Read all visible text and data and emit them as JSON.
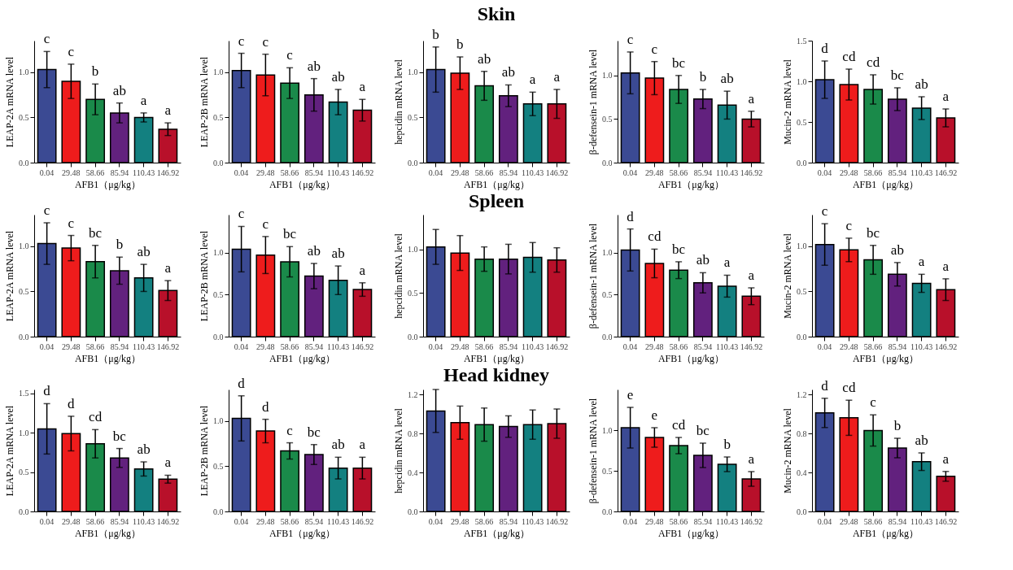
{
  "chart_data": [
    {
      "type": "bar",
      "ylabel": "LEAP-2A mRNA level",
      "xlabel": "AFB1（μg/kg）",
      "categories": [
        "0.04",
        "29.48",
        "58.66",
        "85.94",
        "110.43",
        "146.92"
      ],
      "colors": [
        "#3b4a93",
        "#ee1c1c",
        "#1a8a4a",
        "#62217e",
        "#138080",
        "#b8102a"
      ],
      "values": [
        1.03,
        0.9,
        0.7,
        0.55,
        0.5,
        0.37
      ],
      "errors": [
        0.2,
        0.19,
        0.17,
        0.11,
        0.05,
        0.07
      ],
      "ylim": [
        0,
        1.35
      ],
      "yticks": [
        {
          "value": 0,
          "label": "0.0"
        },
        {
          "value": 0.5,
          "label": "0.5"
        },
        {
          "value": 1,
          "label": "1.0"
        }
      ],
      "grid": false,
      "legend": false,
      "annotations": [
        {
          "text": "c",
          "x": "0.04",
          "y": 1.23
        },
        {
          "text": "c",
          "x": "29.48",
          "y": 1.09
        },
        {
          "text": "b",
          "x": "58.66",
          "y": 0.87
        },
        {
          "text": "ab",
          "x": "85.94",
          "y": 0.66
        },
        {
          "text": "a",
          "x": "110.43",
          "y": 0.55
        },
        {
          "text": "a",
          "x": "146.92",
          "y": 0.44
        }
      ]
    },
    {
      "type": "bar",
      "ylabel": "LEAP-2B mRNA level",
      "xlabel": "AFB1（μg/kg）",
      "categories": [
        "0.04",
        "29.48",
        "58.66",
        "85.94",
        "110.43",
        "146.92"
      ],
      "colors": [
        "#3b4a93",
        "#ee1c1c",
        "#1a8a4a",
        "#62217e",
        "#138080",
        "#b8102a"
      ],
      "values": [
        1.02,
        0.97,
        0.88,
        0.75,
        0.67,
        0.58
      ],
      "errors": [
        0.19,
        0.23,
        0.17,
        0.18,
        0.14,
        0.12
      ],
      "ylim": [
        0,
        1.35
      ],
      "yticks": [
        {
          "value": 0,
          "label": "0.0"
        },
        {
          "value": 0.5,
          "label": "0.5"
        },
        {
          "value": 1,
          "label": "1.0"
        }
      ],
      "grid": false,
      "legend": false,
      "annotations": [
        {
          "text": "c",
          "x": "0.04",
          "y": 1.21
        },
        {
          "text": "c",
          "x": "29.48",
          "y": 1.2
        },
        {
          "text": "c",
          "x": "58.66",
          "y": 1.05
        },
        {
          "text": "ab",
          "x": "85.94",
          "y": 0.93
        },
        {
          "text": "ab",
          "x": "110.43",
          "y": 0.81
        },
        {
          "text": "a",
          "x": "146.92",
          "y": 0.7
        }
      ]
    },
    {
      "type": "bar",
      "title": "Skin",
      "ylabel": "hepcidin mRNA level",
      "xlabel": "AFB1（μg/kg）",
      "categories": [
        "0.04",
        "29.48",
        "58.66",
        "85.94",
        "110.43",
        "146.92"
      ],
      "colors": [
        "#3b4a93",
        "#ee1c1c",
        "#1a8a4a",
        "#62217e",
        "#138080",
        "#b8102a"
      ],
      "values": [
        1.03,
        0.99,
        0.85,
        0.74,
        0.65,
        0.65
      ],
      "errors": [
        0.25,
        0.18,
        0.16,
        0.12,
        0.13,
        0.16
      ],
      "ylim": [
        0,
        1.35
      ],
      "yticks": [
        {
          "value": 0,
          "label": "0.0"
        },
        {
          "value": 0.5,
          "label": "0.5"
        },
        {
          "value": 1,
          "label": "1.0"
        }
      ],
      "grid": false,
      "legend": false,
      "annotations": [
        {
          "text": "b",
          "x": "0.04",
          "y": 1.28
        },
        {
          "text": "b",
          "x": "29.48",
          "y": 1.17
        },
        {
          "text": "ab",
          "x": "58.66",
          "y": 1.01
        },
        {
          "text": "ab",
          "x": "85.94",
          "y": 0.86
        },
        {
          "text": "a",
          "x": "110.43",
          "y": 0.78
        },
        {
          "text": "a",
          "x": "146.92",
          "y": 0.81
        }
      ]
    },
    {
      "type": "bar",
      "ylabel": "β-defensein-1 mRNA level",
      "xlabel": "AFB1（μg/kg）",
      "categories": [
        "0.04",
        "29.48",
        "58.66",
        "85.94",
        "110.43",
        "146.92"
      ],
      "colors": [
        "#3b4a93",
        "#ee1c1c",
        "#1a8a4a",
        "#62217e",
        "#138080",
        "#b8102a"
      ],
      "values": [
        1.03,
        0.97,
        0.84,
        0.73,
        0.66,
        0.5
      ],
      "errors": [
        0.24,
        0.19,
        0.16,
        0.11,
        0.16,
        0.09
      ],
      "ylim": [
        0,
        1.4
      ],
      "yticks": [
        {
          "value": 0,
          "label": "0.0"
        },
        {
          "value": 0.5,
          "label": "0.5"
        },
        {
          "value": 1,
          "label": "1.0"
        }
      ],
      "grid": false,
      "legend": false,
      "annotations": [
        {
          "text": "c",
          "x": "0.04",
          "y": 1.27
        },
        {
          "text": "c",
          "x": "29.48",
          "y": 1.16
        },
        {
          "text": "bc",
          "x": "58.66",
          "y": 1.0
        },
        {
          "text": "b",
          "x": "85.94",
          "y": 0.84
        },
        {
          "text": "ab",
          "x": "110.43",
          "y": 0.82
        },
        {
          "text": "a",
          "x": "146.92",
          "y": 0.59
        }
      ]
    },
    {
      "type": "bar",
      "ylabel": "Mucin-2 mRNA level",
      "xlabel": "AFB1（μg/kg）",
      "categories": [
        "0.04",
        "29.48",
        "58.66",
        "85.94",
        "110.43",
        "146.92"
      ],
      "colors": [
        "#3b4a93",
        "#ee1c1c",
        "#1a8a4a",
        "#62217e",
        "#138080",
        "#b8102a"
      ],
      "values": [
        1.02,
        0.96,
        0.9,
        0.78,
        0.67,
        0.55
      ],
      "errors": [
        0.23,
        0.19,
        0.18,
        0.14,
        0.14,
        0.11
      ],
      "ylim": [
        0,
        1.5
      ],
      "yticks": [
        {
          "value": 0,
          "label": "0.0"
        },
        {
          "value": 0.5,
          "label": "0.5"
        },
        {
          "value": 1,
          "label": "1.0"
        },
        {
          "value": 1.5,
          "label": "1.5"
        }
      ],
      "grid": false,
      "legend": false,
      "annotations": [
        {
          "text": "d",
          "x": "0.04",
          "y": 1.25
        },
        {
          "text": "cd",
          "x": "29.48",
          "y": 1.15
        },
        {
          "text": "cd",
          "x": "58.66",
          "y": 1.08
        },
        {
          "text": "bc",
          "x": "85.94",
          "y": 0.92
        },
        {
          "text": "ab",
          "x": "110.43",
          "y": 0.81
        },
        {
          "text": "a",
          "x": "146.92",
          "y": 0.66
        }
      ]
    },
    {
      "type": "bar",
      "ylabel": "LEAP-2A mRNA level",
      "xlabel": "AFB1（μg/kg）",
      "categories": [
        "0.04",
        "29.48",
        "58.66",
        "85.94",
        "110.43",
        "146.92"
      ],
      "colors": [
        "#3b4a93",
        "#ee1c1c",
        "#1a8a4a",
        "#62217e",
        "#138080",
        "#b8102a"
      ],
      "values": [
        1.03,
        0.98,
        0.83,
        0.73,
        0.65,
        0.51
      ],
      "errors": [
        0.23,
        0.14,
        0.18,
        0.15,
        0.15,
        0.11
      ],
      "ylim": [
        0,
        1.35
      ],
      "yticks": [
        {
          "value": 0,
          "label": "0.0"
        },
        {
          "value": 0.5,
          "label": "0.5"
        },
        {
          "value": 1,
          "label": "1.0"
        }
      ],
      "grid": false,
      "legend": false,
      "annotations": [
        {
          "text": "c",
          "x": "0.04",
          "y": 1.26
        },
        {
          "text": "c",
          "x": "29.48",
          "y": 1.12
        },
        {
          "text": "bc",
          "x": "58.66",
          "y": 1.01
        },
        {
          "text": "b",
          "x": "85.94",
          "y": 0.88
        },
        {
          "text": "ab",
          "x": "110.43",
          "y": 0.8
        },
        {
          "text": "a",
          "x": "146.92",
          "y": 0.62
        }
      ]
    },
    {
      "type": "bar",
      "ylabel": "LEAP-2B mRNA level",
      "xlabel": "AFB1（μg/kg）",
      "categories": [
        "0.04",
        "29.48",
        "58.66",
        "85.94",
        "110.43",
        "146.92"
      ],
      "colors": [
        "#3b4a93",
        "#ee1c1c",
        "#1a8a4a",
        "#62217e",
        "#138080",
        "#b8102a"
      ],
      "values": [
        1.04,
        0.97,
        0.89,
        0.72,
        0.67,
        0.56
      ],
      "errors": [
        0.27,
        0.22,
        0.18,
        0.15,
        0.17,
        0.08
      ],
      "ylim": [
        0,
        1.45
      ],
      "yticks": [
        {
          "value": 0,
          "label": "0.0"
        },
        {
          "value": 0.5,
          "label": "0.5"
        },
        {
          "value": 1,
          "label": "1.0"
        }
      ],
      "grid": false,
      "legend": false,
      "annotations": [
        {
          "text": "c",
          "x": "0.04",
          "y": 1.31
        },
        {
          "text": "c",
          "x": "29.48",
          "y": 1.19
        },
        {
          "text": "bc",
          "x": "58.66",
          "y": 1.07
        },
        {
          "text": "ab",
          "x": "85.94",
          "y": 0.87
        },
        {
          "text": "ab",
          "x": "110.43",
          "y": 0.84
        },
        {
          "text": "a",
          "x": "146.92",
          "y": 0.64
        }
      ]
    },
    {
      "type": "bar",
      "title": "Spleen",
      "ylabel": "hepcidin mRNA level",
      "xlabel": "AFB1（μg/kg）",
      "categories": [
        "0.04",
        "29.48",
        "58.66",
        "85.94",
        "110.43",
        "146.92"
      ],
      "colors": [
        "#3b4a93",
        "#ee1c1c",
        "#1a8a4a",
        "#62217e",
        "#138080",
        "#b8102a"
      ],
      "values": [
        1.03,
        0.96,
        0.89,
        0.89,
        0.91,
        0.88
      ],
      "errors": [
        0.2,
        0.2,
        0.14,
        0.17,
        0.17,
        0.14
      ],
      "ylim": [
        0,
        1.4
      ],
      "yticks": [
        {
          "value": 0,
          "label": "0.0"
        },
        {
          "value": 0.5,
          "label": "0.5"
        },
        {
          "value": 1,
          "label": "1.0"
        }
      ],
      "grid": false,
      "legend": false
    },
    {
      "type": "bar",
      "ylabel": "β-defensein-1 mRNA level",
      "xlabel": "AFB1（μg/kg）",
      "categories": [
        "0.04",
        "29.48",
        "58.66",
        "85.94",
        "110.43",
        "146.92"
      ],
      "colors": [
        "#3b4a93",
        "#ee1c1c",
        "#1a8a4a",
        "#62217e",
        "#138080",
        "#b8102a"
      ],
      "values": [
        1.03,
        0.87,
        0.79,
        0.64,
        0.6,
        0.48
      ],
      "errors": [
        0.25,
        0.17,
        0.1,
        0.12,
        0.13,
        0.1
      ],
      "ylim": [
        0,
        1.45
      ],
      "yticks": [
        {
          "value": 0,
          "label": "0.0"
        },
        {
          "value": 0.5,
          "label": "0.5"
        },
        {
          "value": 1,
          "label": "1.0"
        }
      ],
      "grid": false,
      "legend": false,
      "annotations": [
        {
          "text": "d",
          "x": "0.04",
          "y": 1.28
        },
        {
          "text": "cd",
          "x": "29.48",
          "y": 1.04
        },
        {
          "text": "bc",
          "x": "58.66",
          "y": 0.89
        },
        {
          "text": "ab",
          "x": "85.94",
          "y": 0.76
        },
        {
          "text": "a",
          "x": "110.43",
          "y": 0.73
        },
        {
          "text": "a",
          "x": "146.92",
          "y": 0.58
        }
      ]
    },
    {
      "type": "bar",
      "ylabel": "Mucin-2 mRNA level",
      "xlabel": "AFB1（μg/kg）",
      "categories": [
        "0.04",
        "29.48",
        "58.66",
        "85.94",
        "110.43",
        "146.92"
      ],
      "colors": [
        "#3b4a93",
        "#ee1c1c",
        "#1a8a4a",
        "#62217e",
        "#138080",
        "#b8102a"
      ],
      "values": [
        1.02,
        0.96,
        0.85,
        0.69,
        0.59,
        0.52
      ],
      "errors": [
        0.23,
        0.13,
        0.16,
        0.13,
        0.1,
        0.12
      ],
      "ylim": [
        0,
        1.35
      ],
      "yticks": [
        {
          "value": 0,
          "label": "0.0"
        },
        {
          "value": 0.5,
          "label": "0.5"
        },
        {
          "value": 1,
          "label": "1.0"
        }
      ],
      "grid": false,
      "legend": false,
      "annotations": [
        {
          "text": "c",
          "x": "0.04",
          "y": 1.25
        },
        {
          "text": "c",
          "x": "29.48",
          "y": 1.09
        },
        {
          "text": "bc",
          "x": "58.66",
          "y": 1.01
        },
        {
          "text": "ab",
          "x": "85.94",
          "y": 0.82
        },
        {
          "text": "a",
          "x": "110.43",
          "y": 0.69
        },
        {
          "text": "a",
          "x": "146.92",
          "y": 0.64
        }
      ]
    },
    {
      "type": "bar",
      "ylabel": "LEAP-2A mRNA level",
      "xlabel": "AFB1（μg/kg）",
      "categories": [
        "0.04",
        "29.48",
        "58.66",
        "85.94",
        "110.43",
        "146.92"
      ],
      "colors": [
        "#3b4a93",
        "#ee1c1c",
        "#1a8a4a",
        "#62217e",
        "#138080",
        "#b8102a"
      ],
      "values": [
        1.05,
        0.99,
        0.86,
        0.68,
        0.54,
        0.41
      ],
      "errors": [
        0.32,
        0.22,
        0.18,
        0.12,
        0.09,
        0.05
      ],
      "ylim": [
        0,
        1.55
      ],
      "yticks": [
        {
          "value": 0,
          "label": "0.0"
        },
        {
          "value": 0.5,
          "label": "0.5"
        },
        {
          "value": 1,
          "label": "1.0"
        },
        {
          "value": 1.5,
          "label": "1.5"
        }
      ],
      "grid": false,
      "legend": false,
      "annotations": [
        {
          "text": "d",
          "x": "0.04",
          "y": 1.37
        },
        {
          "text": "d",
          "x": "29.48",
          "y": 1.21
        },
        {
          "text": "cd",
          "x": "58.66",
          "y": 1.04
        },
        {
          "text": "bc",
          "x": "85.94",
          "y": 0.8
        },
        {
          "text": "ab",
          "x": "110.43",
          "y": 0.63
        },
        {
          "text": "a",
          "x": "146.92",
          "y": 0.46
        }
      ]
    },
    {
      "type": "bar",
      "ylabel": "LEAP-2B mRNA level",
      "xlabel": "AFB1（μg/kg）",
      "categories": [
        "0.04",
        "29.48",
        "58.66",
        "85.94",
        "110.43",
        "146.92"
      ],
      "colors": [
        "#3b4a93",
        "#ee1c1c",
        "#1a8a4a",
        "#62217e",
        "#138080",
        "#b8102a"
      ],
      "values": [
        1.03,
        0.89,
        0.67,
        0.63,
        0.48,
        0.48
      ],
      "errors": [
        0.25,
        0.13,
        0.09,
        0.11,
        0.12,
        0.12
      ],
      "ylim": [
        0,
        1.35
      ],
      "yticks": [
        {
          "value": 0,
          "label": "0.0"
        },
        {
          "value": 0.5,
          "label": "0.5"
        },
        {
          "value": 1,
          "label": "1.0"
        }
      ],
      "grid": false,
      "legend": false,
      "annotations": [
        {
          "text": "d",
          "x": "0.04",
          "y": 1.28
        },
        {
          "text": "d",
          "x": "29.48",
          "y": 1.02
        },
        {
          "text": "c",
          "x": "58.66",
          "y": 0.76
        },
        {
          "text": "bc",
          "x": "85.94",
          "y": 0.74
        },
        {
          "text": "ab",
          "x": "110.43",
          "y": 0.6
        },
        {
          "text": "a",
          "x": "146.92",
          "y": 0.6
        }
      ]
    },
    {
      "type": "bar",
      "title": "Head kidney",
      "ylabel": "hepcidin mRNA level",
      "xlabel": "AFB1（μg/kg）",
      "categories": [
        "0.04",
        "29.48",
        "58.66",
        "85.94",
        "110.43",
        "146.92"
      ],
      "colors": [
        "#3b4a93",
        "#ee1c1c",
        "#1a8a4a",
        "#62217e",
        "#138080",
        "#b8102a"
      ],
      "values": [
        1.03,
        0.91,
        0.89,
        0.87,
        0.89,
        0.9
      ],
      "errors": [
        0.22,
        0.17,
        0.17,
        0.11,
        0.15,
        0.15
      ],
      "ylim": [
        0,
        1.25
      ],
      "yticks": [
        {
          "value": 0,
          "label": "0.0"
        },
        {
          "value": 0.4,
          "label": "0.4"
        },
        {
          "value": 0.8,
          "label": "0.8"
        },
        {
          "value": 1.2,
          "label": "1.2"
        }
      ],
      "grid": false,
      "legend": false
    },
    {
      "type": "bar",
      "ylabel": "β-defensein-1 mRNA level",
      "xlabel": "AFB1（μg/kg）",
      "categories": [
        "0.04",
        "29.48",
        "58.66",
        "85.94",
        "110.43",
        "146.92"
      ],
      "colors": [
        "#3b4a93",
        "#ee1c1c",
        "#1a8a4a",
        "#62217e",
        "#138080",
        "#b8102a"
      ],
      "values": [
        1.03,
        0.91,
        0.81,
        0.69,
        0.58,
        0.4
      ],
      "errors": [
        0.25,
        0.12,
        0.1,
        0.15,
        0.09,
        0.09
      ],
      "ylim": [
        0,
        1.5
      ],
      "yticks": [
        {
          "value": 0,
          "label": "0.0"
        },
        {
          "value": 0.5,
          "label": "0.5"
        },
        {
          "value": 1,
          "label": "1.0"
        }
      ],
      "grid": false,
      "legend": false,
      "annotations": [
        {
          "text": "e",
          "x": "0.04",
          "y": 1.28
        },
        {
          "text": "e",
          "x": "29.48",
          "y": 1.03
        },
        {
          "text": "cd",
          "x": "58.66",
          "y": 0.91
        },
        {
          "text": "bc",
          "x": "85.94",
          "y": 0.84
        },
        {
          "text": "b",
          "x": "110.43",
          "y": 0.67
        },
        {
          "text": "a",
          "x": "146.92",
          "y": 0.49
        }
      ]
    },
    {
      "type": "bar",
      "ylabel": "Mucin-2 mRNA level",
      "xlabel": "AFB1（μg/kg）",
      "categories": [
        "0.04",
        "29.48",
        "58.66",
        "85.94",
        "110.43",
        "146.92"
      ],
      "colors": [
        "#3b4a93",
        "#ee1c1c",
        "#1a8a4a",
        "#62217e",
        "#138080",
        "#b8102a"
      ],
      "values": [
        1.01,
        0.96,
        0.83,
        0.65,
        0.51,
        0.36
      ],
      "errors": [
        0.15,
        0.18,
        0.16,
        0.1,
        0.09,
        0.05
      ],
      "ylim": [
        0,
        1.25
      ],
      "yticks": [
        {
          "value": 0,
          "label": "0.0"
        },
        {
          "value": 0.4,
          "label": "0.4"
        },
        {
          "value": 0.8,
          "label": "0.8"
        },
        {
          "value": 1.2,
          "label": "1.2"
        }
      ],
      "grid": false,
      "legend": false,
      "annotations": [
        {
          "text": "d",
          "x": "0.04",
          "y": 1.16
        },
        {
          "text": "cd",
          "x": "29.48",
          "y": 1.14
        },
        {
          "text": "c",
          "x": "58.66",
          "y": 0.99
        },
        {
          "text": "b",
          "x": "85.94",
          "y": 0.75
        },
        {
          "text": "ab",
          "x": "110.43",
          "y": 0.6
        },
        {
          "text": "a",
          "x": "146.92",
          "y": 0.41
        }
      ]
    }
  ]
}
